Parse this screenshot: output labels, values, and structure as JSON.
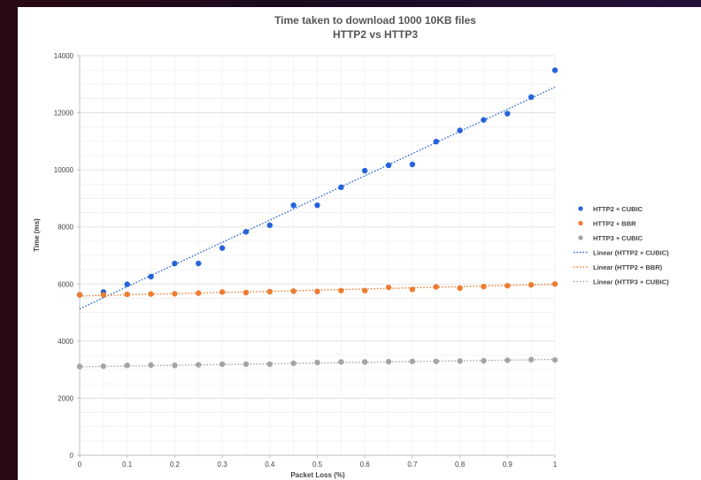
{
  "chart_data": {
    "type": "scatter",
    "title": "Time taken to download 1000 10KB files",
    "subtitle": "HTTP2  vs HTTP3",
    "xlabel": "Packet Loss (%)",
    "ylabel": "Time (ms)",
    "xlim": [
      0,
      1
    ],
    "ylim": [
      0,
      14000
    ],
    "x_ticks": [
      "0",
      "0.1",
      "0.2",
      "0.3",
      "0.4",
      "0.5",
      "0.6",
      "0.7",
      "0.8",
      "0.9",
      "1"
    ],
    "y_ticks": [
      "0",
      "2000",
      "4000",
      "6000",
      "8000",
      "10000",
      "12000",
      "14000"
    ],
    "grid": true,
    "legend_position": "right",
    "x": [
      0,
      0.05,
      0.1,
      0.15,
      0.2,
      0.25,
      0.3,
      0.35,
      0.4,
      0.45,
      0.5,
      0.55,
      0.6,
      0.65,
      0.7,
      0.75,
      0.8,
      0.85,
      0.9,
      0.95,
      1
    ],
    "series": [
      {
        "name": "HTTP2 + CUBIC",
        "color": "#2563d8",
        "values": [
          5620,
          5720,
          5990,
          6260,
          6720,
          6720,
          7260,
          7830,
          8060,
          8760,
          8760,
          9390,
          9970,
          10160,
          10190,
          10990,
          11380,
          11750,
          11970,
          12550,
          13490
        ]
      },
      {
        "name": "HTTP2 + BBR",
        "color": "#ee7d31",
        "values": [
          5620,
          5620,
          5640,
          5650,
          5660,
          5680,
          5720,
          5700,
          5730,
          5750,
          5740,
          5770,
          5770,
          5880,
          5810,
          5900,
          5860,
          5910,
          5940,
          5970,
          6000
        ]
      },
      {
        "name": "HTTP3 + CUBIC",
        "color": "#a5a5a5",
        "values": [
          3110,
          3120,
          3150,
          3160,
          3150,
          3170,
          3190,
          3190,
          3190,
          3220,
          3250,
          3270,
          3270,
          3280,
          3290,
          3290,
          3300,
          3310,
          3330,
          3350,
          3340
        ]
      }
    ],
    "trendlines": [
      {
        "name": "Linear (HTTP2 + CUBIC)",
        "color": "#2563d8",
        "y_at_0": 5130,
        "y_at_1": 12900
      },
      {
        "name": "Linear (HTTP2 + BBR)",
        "color": "#ee7d31",
        "y_at_0": 5580,
        "y_at_1": 5990
      },
      {
        "name": "Linear (HTTP3 + CUBIC)",
        "color": "#a5a5a5",
        "y_at_0": 3100,
        "y_at_1": 3360
      }
    ]
  }
}
